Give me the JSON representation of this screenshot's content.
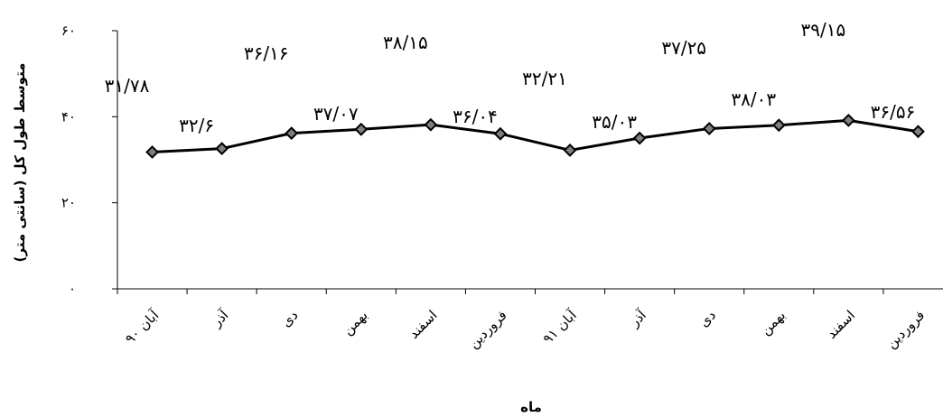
{
  "chart_data": {
    "type": "line",
    "title": "",
    "xlabel": "ماه",
    "ylabel": "متوسط طول کل (سانتی متر)",
    "ylim": [
      0,
      60
    ],
    "yticks": [
      {
        "value": 0,
        "label": "۰"
      },
      {
        "value": 20,
        "label": "۲۰"
      },
      {
        "value": 40,
        "label": "۴۰"
      },
      {
        "value": 60,
        "label": "۶۰"
      }
    ],
    "grid": false,
    "legend": "none",
    "categories": [
      "آبان ۹۰",
      "آذر",
      "دی",
      "بهمن",
      "اسفند",
      "فروردین",
      "آبان ۹۱",
      "آذر",
      "دی",
      "بهمن",
      "اسفند",
      "فروردین"
    ],
    "series": [
      {
        "values": [
          31.78,
          32.6,
          36.16,
          37.07,
          38.15,
          36.04,
          32.21,
          35.03,
          37.25,
          38.03,
          39.15,
          36.56
        ],
        "labels": [
          "۳۱/۷۸",
          "۳۲/۶",
          "۳۶/۱۶",
          "۳۷/۰۷",
          "۳۸/۱۵",
          "۳۶/۰۴",
          "۳۲/۲۱",
          "۳۵/۰۳",
          "۳۷/۲۵",
          "۳۸/۰۳",
          "۳۹/۱۵",
          "۳۶/۵۶"
        ],
        "color": "#000000",
        "marker_fill": "#7f7f7f",
        "marker": "diamond"
      }
    ]
  }
}
